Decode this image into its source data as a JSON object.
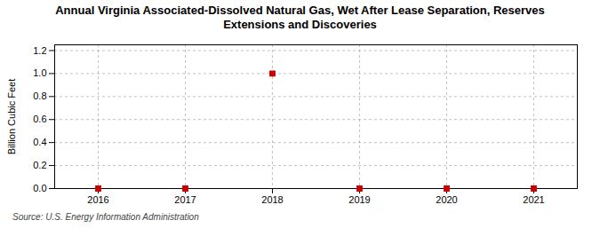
{
  "chart_data": {
    "type": "scatter",
    "title": "Annual Virginia Associated-Dissolved Natural Gas, Wet After Lease Separation, Reserves",
    "subtitle": "Extensions and Discoveries",
    "y_label": "Billion Cubic Feet",
    "annotations": [
      "Source: U.S. Energy Information Administration"
    ],
    "x": [
      2016,
      2017,
      2018,
      2019,
      2020,
      2021
    ],
    "values": [
      0.0,
      0.0,
      1.0,
      0.0,
      0.0,
      0.0
    ],
    "color": "#cc0000",
    "marker": "square",
    "xlim": [
      2015.5,
      2021.5
    ],
    "xticks": [
      2016,
      2017,
      2018,
      2019,
      2020,
      2021
    ],
    "ylim": [
      0.0,
      1.25
    ],
    "yticks": [
      {
        "value": 0.0,
        "label": "0.0"
      },
      0.2,
      0.4,
      0.6,
      0.8,
      {
        "value": 1.0,
        "label": "1.0"
      },
      1.2
    ],
    "grid": true
  }
}
